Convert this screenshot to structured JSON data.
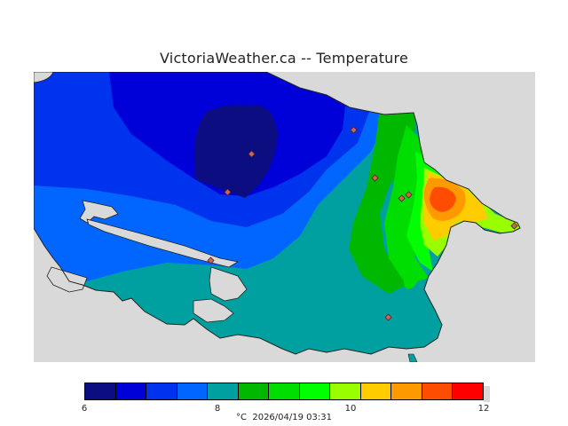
{
  "title": "VictoriaWeather.ca -- Temperature",
  "colors": {
    "background": "#d9d9d9",
    "land_outline": "#000000",
    "station_fill": "#cc6655"
  },
  "color_scale": {
    "min": 6,
    "max": 12,
    "bands": [
      "#0d0d82",
      "#0000d9",
      "#0033ee",
      "#0066ff",
      "#00a0a0",
      "#00b800",
      "#00dd00",
      "#00ff00",
      "#99ff00",
      "#ffcc00",
      "#ff9900",
      "#ff4d00",
      "#ff0000"
    ],
    "tick_labels": [
      "6",
      "8",
      "10",
      "12"
    ]
  },
  "footer": {
    "unit": "°C",
    "timestamp": "2026/04/19 03:31"
  },
  "stations": [
    {
      "id": "station-1"
    },
    {
      "id": "station-2"
    },
    {
      "id": "station-3"
    },
    {
      "id": "station-4"
    },
    {
      "id": "station-5"
    },
    {
      "id": "station-6"
    },
    {
      "id": "station-7"
    },
    {
      "id": "station-8"
    },
    {
      "id": "station-9"
    }
  ]
}
